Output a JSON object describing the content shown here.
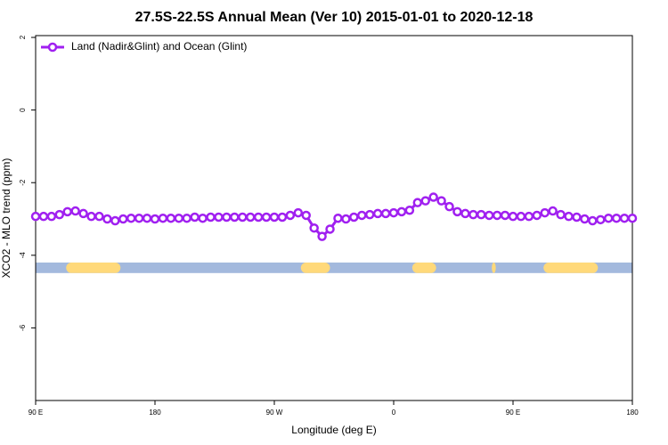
{
  "chart_data": {
    "type": "line",
    "title": "27.5S-22.5S Annual Mean (Ver 10)   2015-01-01 to 2020-12-18",
    "x_label": "Longitude (deg E)",
    "y_label": "XCO2 - MLO trend (ppm)",
    "xlim": [
      90,
      540
    ],
    "ylim": [
      -8,
      2.05
    ],
    "xticks": [
      {
        "value": 90,
        "label": "90 E"
      },
      {
        "value": 180,
        "label": "180"
      },
      {
        "value": 270,
        "label": "90 W"
      },
      {
        "value": 360,
        "label": "0"
      },
      {
        "value": 450,
        "label": "90 E"
      },
      {
        "value": 540,
        "label": "180"
      }
    ],
    "yticks": [
      2,
      0,
      -2,
      -4,
      -6
    ],
    "legend": "top-left",
    "x": [
      90,
      96,
      102,
      108,
      114,
      120,
      126,
      132,
      138,
      144,
      150,
      156,
      162,
      168,
      174,
      180,
      186,
      192,
      198,
      204,
      210,
      216,
      222,
      228,
      234,
      240,
      246,
      252,
      258,
      264,
      270,
      276,
      282,
      288,
      294,
      300,
      306,
      312,
      318,
      324,
      330,
      336,
      342,
      348,
      354,
      360,
      366,
      372,
      378,
      384,
      390,
      396,
      402,
      408,
      414,
      420,
      426,
      432,
      438,
      444,
      450,
      456,
      462,
      468,
      474,
      480,
      486,
      492,
      498,
      504,
      510,
      516,
      522,
      528,
      534,
      540
    ],
    "series": [
      {
        "name": "Land (Nadir&Glint) and Ocean (Glint)",
        "color": "#a020f0",
        "values": [
          -2.93,
          -2.93,
          -2.93,
          -2.88,
          -2.8,
          -2.78,
          -2.85,
          -2.93,
          -2.93,
          -3.0,
          -3.05,
          -3.0,
          -2.98,
          -2.98,
          -2.98,
          -3.0,
          -2.98,
          -2.98,
          -2.98,
          -2.98,
          -2.95,
          -2.98,
          -2.95,
          -2.95,
          -2.95,
          -2.95,
          -2.95,
          -2.95,
          -2.95,
          -2.95,
          -2.95,
          -2.95,
          -2.9,
          -2.83,
          -2.9,
          -3.25,
          -3.48,
          -3.28,
          -2.98,
          -3.0,
          -2.95,
          -2.9,
          -2.88,
          -2.85,
          -2.85,
          -2.83,
          -2.8,
          -2.76,
          -2.55,
          -2.5,
          -2.4,
          -2.5,
          -2.66,
          -2.8,
          -2.85,
          -2.88,
          -2.88,
          -2.9,
          -2.9,
          -2.9,
          -2.93,
          -2.93,
          -2.93,
          -2.9,
          -2.83,
          -2.78,
          -2.88,
          -2.93,
          -2.95,
          -3.0,
          -3.05,
          -3.02,
          -2.98,
          -2.98,
          -2.98,
          -2.98
        ]
      }
    ],
    "surface_band": {
      "range": [
        -4.49,
        -4.2
      ],
      "xlim": [
        90,
        540
      ],
      "ocean_color": "#a3b9dd",
      "land_color": "#ffd97a",
      "land": [
        [
          113,
          154
        ],
        [
          290,
          312
        ],
        [
          374,
          392
        ],
        [
          434,
          437
        ],
        [
          473,
          514
        ]
      ]
    }
  }
}
